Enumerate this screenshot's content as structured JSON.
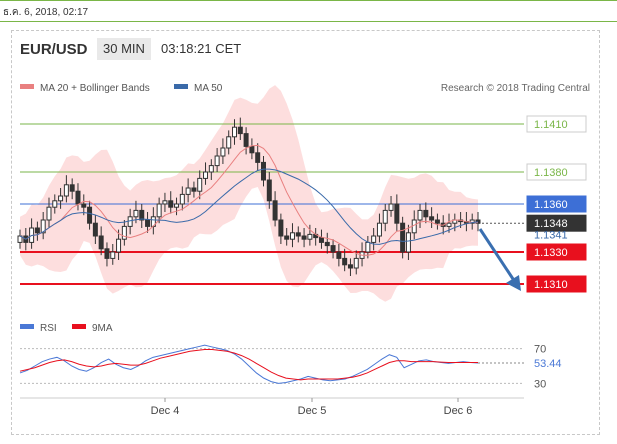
{
  "header": {
    "date_time": "ธ.ค. 6, 2018, 02:17",
    "pair": "EUR/USD",
    "timeframe": "30 MIN",
    "clock": "03:18:21 CET"
  },
  "legend": {
    "ma20": "MA 20 + Bollinger Bands",
    "ma50": "MA 50",
    "credit": "Research © 2018 Trading Central"
  },
  "colors": {
    "green_level": "#7ab648",
    "blue_level": "#3d6fd6",
    "red_level": "#e8101e",
    "band": "#fcd6d6",
    "ma20": "#e98080",
    "ma50": "#3a6aa9",
    "candle": "#333333",
    "rsi": "#4a78d6",
    "rsi_ma": "#e8101e",
    "arrow": "#3a6fb0"
  },
  "chart_data": [
    {
      "type": "line",
      "title": "EUR/USD 30 MIN",
      "x_labels": [
        "Dec 4",
        "Dec 5",
        "Dec 6"
      ],
      "ylim": [
        1.13,
        1.1425
      ],
      "price": [
        1.134,
        1.1336,
        1.1345,
        1.1342,
        1.135,
        1.1358,
        1.1362,
        1.1365,
        1.1372,
        1.1368,
        1.136,
        1.1358,
        1.1348,
        1.134,
        1.1332,
        1.1326,
        1.133,
        1.1338,
        1.1346,
        1.1352,
        1.1356,
        1.135,
        1.1346,
        1.1352,
        1.136,
        1.1362,
        1.1358,
        1.136,
        1.1366,
        1.137,
        1.1368,
        1.1376,
        1.138,
        1.1384,
        1.139,
        1.1395,
        1.1402,
        1.1408,
        1.1404,
        1.1396,
        1.1392,
        1.1386,
        1.1375,
        1.1362,
        1.135,
        1.134,
        1.1338,
        1.1342,
        1.134,
        1.1338,
        1.1341,
        1.1339,
        1.1336,
        1.1334,
        1.133,
        1.1326,
        1.1322,
        1.132,
        1.1326,
        1.133,
        1.1336,
        1.134,
        1.1348,
        1.1356,
        1.136,
        1.1348,
        1.133,
        1.1342,
        1.135,
        1.1356,
        1.1352,
        1.135,
        1.1348,
        1.1346,
        1.1348,
        1.135,
        1.1349,
        1.1348,
        1.135,
        1.1348
      ],
      "levels": [
        {
          "value": 1.141,
          "label": "1.1410",
          "kind": "resistance"
        },
        {
          "value": 1.138,
          "label": "1.1380",
          "kind": "resistance"
        },
        {
          "value": 1.136,
          "label": "1.1360",
          "kind": "pivot"
        },
        {
          "value": 1.1348,
          "label": "1.1348",
          "kind": "last"
        },
        {
          "value": 1.1341,
          "label": "1.1341",
          "kind": "ma50"
        },
        {
          "value": 1.133,
          "label": "1.1330",
          "kind": "support"
        },
        {
          "value": 1.131,
          "label": "1.1310",
          "kind": "support"
        }
      ],
      "target": 1.131
    },
    {
      "type": "line",
      "ylim": [
        20,
        80
      ],
      "ticks": [
        "70",
        "30"
      ],
      "legend": [
        "RSI",
        "9MA"
      ],
      "last_value": "53.44",
      "rsi": [
        42,
        45,
        50,
        55,
        58,
        60,
        56,
        50,
        46,
        44,
        48,
        54,
        58,
        52,
        48,
        46,
        50,
        56,
        60,
        62,
        64,
        66,
        68,
        70,
        72,
        74,
        72,
        70,
        68,
        64,
        58,
        50,
        42,
        36,
        32,
        30,
        31,
        33,
        35,
        38,
        36,
        34,
        33,
        34,
        35,
        38,
        42,
        46,
        52,
        58,
        63,
        60,
        48,
        52,
        56,
        57,
        55,
        54,
        53,
        54,
        55,
        54,
        53.44
      ],
      "rsi_ma": [
        44,
        46,
        48,
        51,
        54,
        56,
        57,
        55,
        52,
        50,
        49,
        50,
        52,
        53,
        52,
        51,
        51,
        53,
        56,
        59,
        61,
        63,
        65,
        67,
        68,
        69,
        69,
        68,
        67,
        65,
        62,
        58,
        53,
        48,
        43,
        39,
        36,
        35,
        34,
        35,
        35,
        35,
        35,
        35,
        36,
        37,
        39,
        42,
        46,
        50,
        54,
        56,
        56,
        55,
        55,
        55,
        55,
        54.5,
        54,
        54,
        54,
        54,
        54
      ]
    }
  ]
}
